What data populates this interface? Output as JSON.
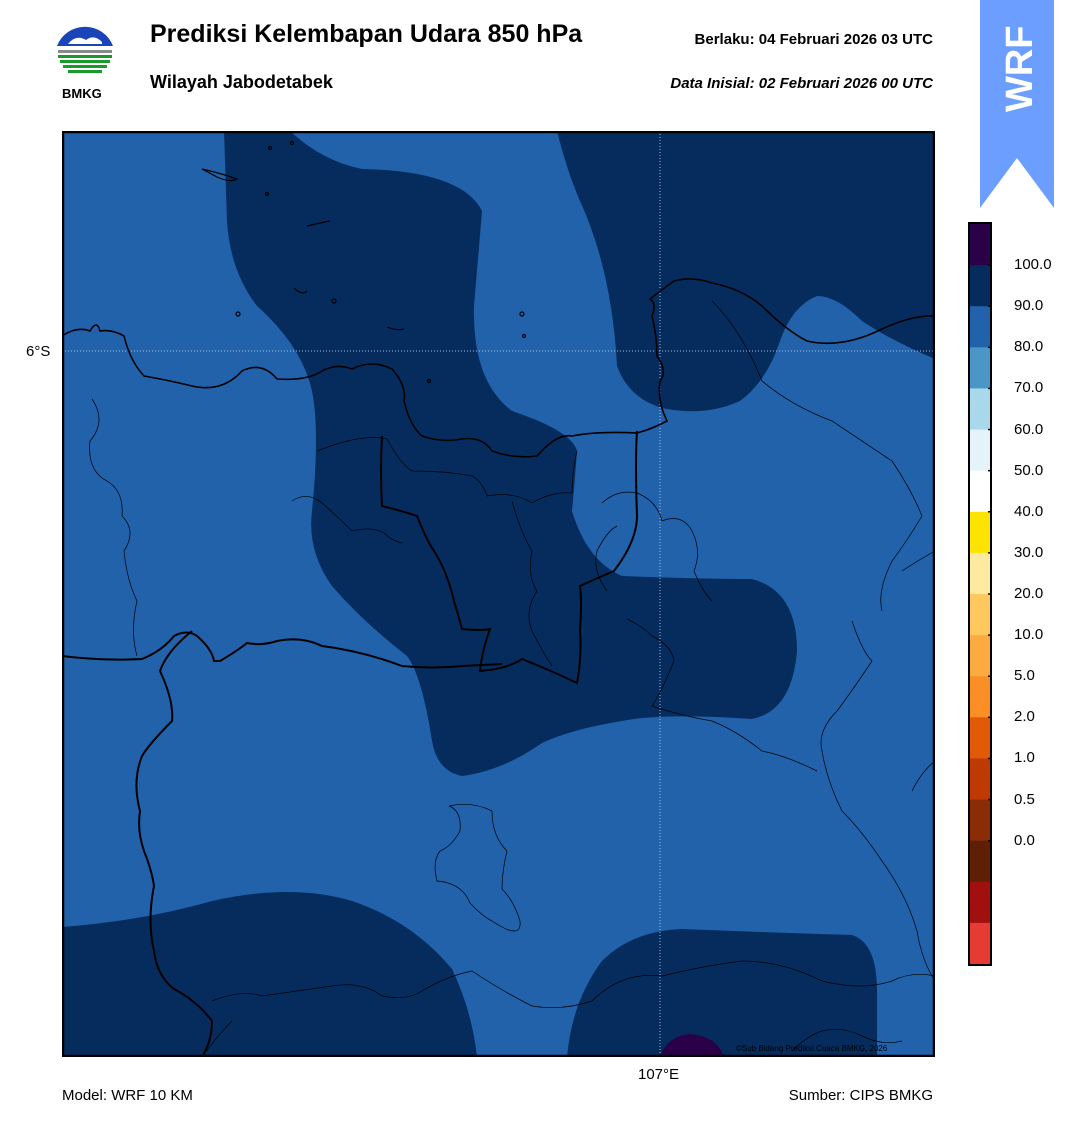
{
  "header": {
    "title": "Prediksi Kelembapan Udara 850 hPa",
    "region": "Wilayah Jabodetabek",
    "valid_time": "Berlaku:  04 Februari 2026 03 UTC",
    "initial_data": "Data Inisial:  02 Februari 2026 00 UTC"
  },
  "logo": {
    "icon": "bmkg-logo-icon",
    "label": "BMKG"
  },
  "wrf_badge": {
    "label": "WRF",
    "color": "#6b9eff"
  },
  "map": {
    "lat_label": "6°S",
    "lon_label": "107°E",
    "copyright": "©Sub Bidang Prediksi Cuaca BMKG, 2026",
    "colors": {
      "band_80_90": "#2162ab",
      "band_90_100": "#062c5e",
      "band_100_plus": "#2a0048",
      "boundary": "#000000",
      "gridline": "#a8c0e0"
    }
  },
  "colorbar": {
    "ticks": [
      "100.0",
      "90.0",
      "80.0",
      "70.0",
      "60.0",
      "50.0",
      "40.0",
      "30.0",
      "20.0",
      "10.0",
      "5.0",
      "2.0",
      "1.0",
      "0.5",
      "0.0"
    ],
    "colors": [
      "#2a0048",
      "#062c5e",
      "#2162ab",
      "#4a96c6",
      "#a9d8ea",
      "#e4f2f9",
      "#ffffff",
      "#fde400",
      "#fde9a0",
      "#fec85c",
      "#fdaa40",
      "#fc8e26",
      "#e25a08",
      "#bf3a02",
      "#8a2c05",
      "#5e1f04",
      "#a1100e",
      "#e53b32"
    ]
  },
  "footer": {
    "model": "Model: WRF 10 KM",
    "source": "Sumber: CIPS BMKG"
  }
}
